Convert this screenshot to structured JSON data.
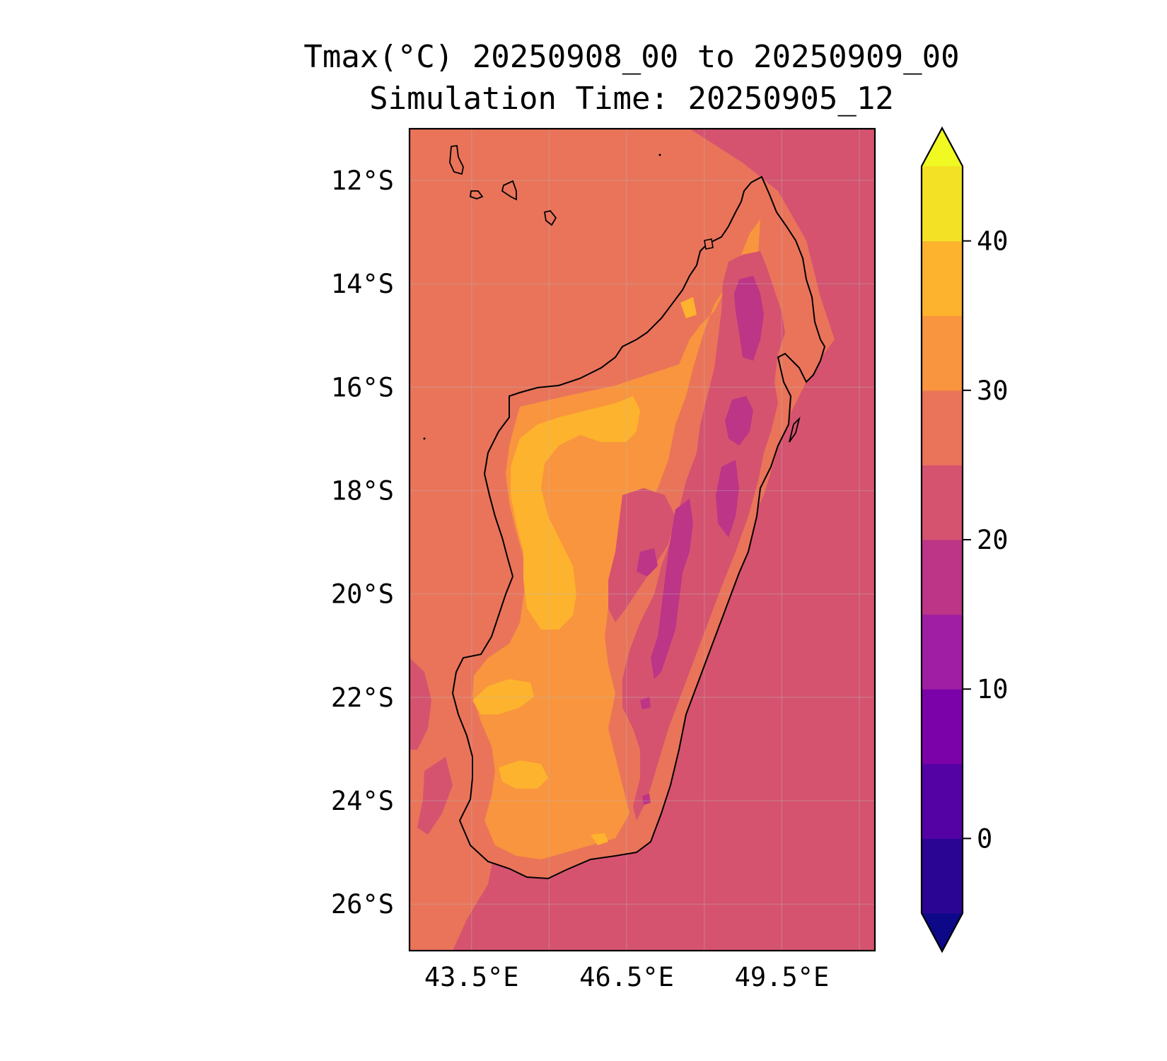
{
  "title": {
    "line1": "Tmax(°C) 20250908_00 to 20250909_00",
    "line2": "Simulation Time: 20250905_12"
  },
  "chart_data": {
    "type": "heatmap",
    "variable": "Tmax",
    "units": "°C",
    "region": "Madagascar",
    "lon_range": [
      42.3,
      51.3
    ],
    "lat_range": [
      -26.9,
      -11.0
    ],
    "x_ticks": [
      "43.5°E",
      "46.5°E",
      "49.5°E"
    ],
    "x_tick_values": [
      43.5,
      46.5,
      49.5
    ],
    "y_ticks": [
      "12°S",
      "14°S",
      "16°S",
      "18°S",
      "20°S",
      "22°S",
      "24°S",
      "26°S"
    ],
    "y_tick_values": [
      -12,
      -14,
      -16,
      -18,
      -20,
      -22,
      -24,
      -26
    ],
    "grid": true,
    "colorbar": {
      "levels": [
        -5,
        0,
        5,
        10,
        15,
        20,
        25,
        30,
        35,
        40,
        45
      ],
      "tick_labels": [
        "0",
        "10",
        "20",
        "30",
        "40"
      ],
      "tick_values": [
        0,
        10,
        20,
        30,
        40
      ],
      "extend": "both",
      "colors": [
        "#0d0887",
        "#2a0593",
        "#5402a3",
        "#7b02a8",
        "#9f1ea3",
        "#bc3587",
        "#d5536f",
        "#e9745a",
        "#f8953e",
        "#fdb32e",
        "#f3e125",
        "#f0f921"
      ]
    },
    "fields": {
      "ocean_east_c": 23,
      "ocean_west_c": 28,
      "coast_west_c": 32,
      "interior_west_c": 36,
      "highlands_c": 23,
      "highland_cores_c": 17
    }
  }
}
